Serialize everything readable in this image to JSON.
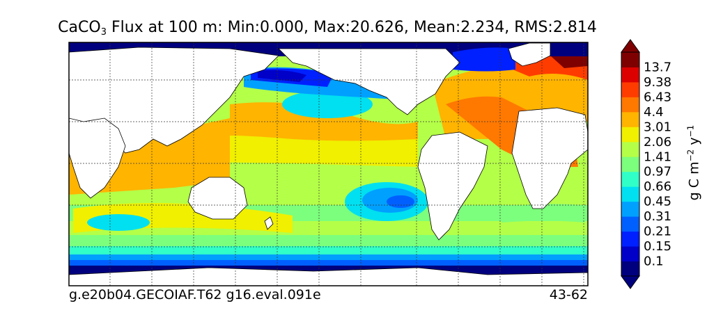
{
  "title": {
    "prefix": "CaCO",
    "subscript": "3",
    "text": " Flux at 100 m: Min:0.000, Max:20.626, Mean:2.234, RMS:2.814"
  },
  "caption_left": "g.e20b04.GECOIAF.T62 g16.eval.091e",
  "caption_right": "43-62",
  "colorbar": {
    "unit": {
      "base": "g C m",
      "exp1": "−2",
      "mid": " y",
      "exp2": "−1"
    },
    "levels": [
      "0.1",
      "0.15",
      "0.21",
      "0.31",
      "0.45",
      "0.66",
      "0.97",
      "1.41",
      "2.06",
      "3.01",
      "4.4",
      "6.43",
      "9.38",
      "13.7"
    ],
    "colors": [
      "#00007f",
      "#0000c8",
      "#0020ff",
      "#0060ff",
      "#00a0ff",
      "#00e0f0",
      "#30ffc8",
      "#7cff7c",
      "#b4ff48",
      "#f0f000",
      "#ffb400",
      "#ff7800",
      "#ff3c00",
      "#dc0000",
      "#7f0000"
    ],
    "extend": "both"
  }
}
